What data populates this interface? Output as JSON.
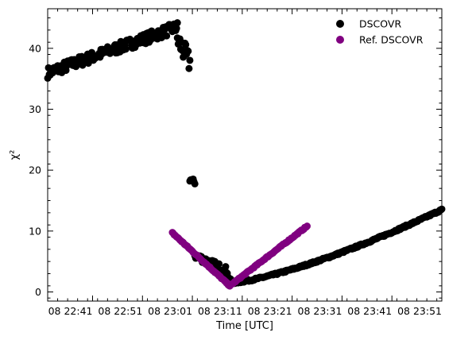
{
  "chart_data": {
    "type": "scatter",
    "xlabel": "Time [UTC]",
    "ylabel": "χ²",
    "xlim": [
      "22:32:00",
      "23:51:00"
    ],
    "ylim": [
      -1.5,
      46.5
    ],
    "x_ticks": [
      {
        "value": "22:41:00",
        "label": "08 22:41"
      },
      {
        "value": "22:51:00",
        "label": "08 22:51"
      },
      {
        "value": "23:01:00",
        "label": "08 23:01"
      },
      {
        "value": "23:11:00",
        "label": "08 23:11"
      },
      {
        "value": "23:21:00",
        "label": "08 23:21"
      },
      {
        "value": "23:31:00",
        "label": "08 23:31"
      },
      {
        "value": "23:41:00",
        "label": "08 23:41"
      },
      {
        "value": "23:51:00",
        "label": "08 23:51"
      }
    ],
    "y_ticks": [
      0,
      10,
      20,
      30,
      40
    ],
    "grid": false,
    "legend": "top-right",
    "series": [
      {
        "name": "DSCOVR",
        "color": "#000000",
        "segments": [
          {
            "x_start": "22:32:00",
            "x_end": "22:58:00",
            "y_start": 36.0,
            "y_end": 43.5,
            "jitter": 0.9
          },
          {
            "x_start": "22:58:00",
            "x_end": "23:00:30",
            "y_start": 41.5,
            "y_end": 37.5,
            "jitter": 1.8
          },
          {
            "x_start": "23:00:30",
            "x_end": "23:01:30",
            "y_start": 18.5,
            "y_end": 18.0,
            "jitter": 0.4
          },
          {
            "x_start": "23:01:30",
            "x_end": "23:08:00",
            "y_start": 6.0,
            "y_end": 3.5,
            "jitter": 0.6
          },
          {
            "x_start": "23:08:00",
            "x_end": "23:09:00",
            "y_start": 2.5,
            "y_end": 1.5,
            "jitter": 0.3
          },
          {
            "x_start": "23:09:00",
            "x_end": "23:51:00",
            "y_start": 1.5,
            "y_end": 13.5,
            "curve": 1.35,
            "jitter": 0.15
          }
        ]
      },
      {
        "name": "Ref. DSCOVR",
        "color": "#800080",
        "segments": [
          {
            "x_start": "22:57:00",
            "x_end": "23:08:30",
            "y_start": 9.7,
            "y_end": 1.0,
            "jitter": 0.1
          },
          {
            "x_start": "23:08:30",
            "x_end": "23:24:00",
            "y_start": 1.0,
            "y_end": 10.8,
            "jitter": 0.1
          }
        ]
      }
    ]
  }
}
